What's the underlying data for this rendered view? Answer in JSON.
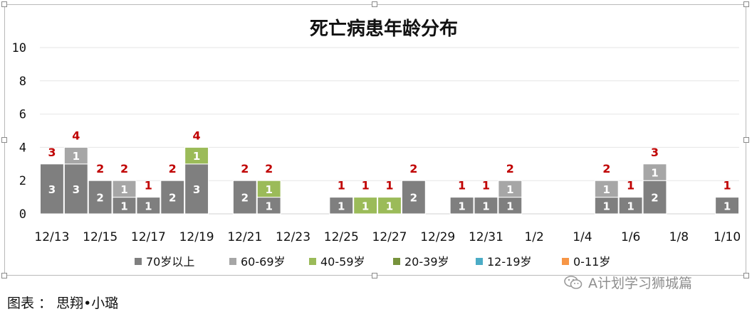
{
  "chart_data": {
    "type": "bar",
    "stacked": true,
    "title": "死亡病患年龄分布",
    "xlabel": "",
    "ylabel": "",
    "ylim": [
      0,
      10
    ],
    "yticks": [
      0,
      2,
      4,
      6,
      8,
      10
    ],
    "grid": true,
    "legend_position": "bottom",
    "categories": [
      "12/13",
      "12/14",
      "12/15",
      "12/16",
      "12/17",
      "12/18",
      "12/19",
      "12/20",
      "12/21",
      "12/22",
      "12/23",
      "12/24",
      "12/25",
      "12/26",
      "12/27",
      "12/28",
      "12/29",
      "12/30",
      "12/31",
      "1/1",
      "1/2",
      "1/3",
      "1/4",
      "1/5",
      "1/6",
      "1/7",
      "1/8",
      "1/9",
      "1/10"
    ],
    "xtick_labels": [
      "12/13",
      "12/15",
      "12/17",
      "12/19",
      "12/21",
      "12/23",
      "12/25",
      "12/27",
      "12/29",
      "12/31",
      "1/2",
      "1/4",
      "1/6",
      "1/8",
      "1/10"
    ],
    "series": [
      {
        "name": "70岁以上",
        "color": "#7f7f7f",
        "values": [
          3,
          3,
          2,
          1,
          1,
          2,
          3,
          0,
          2,
          1,
          0,
          0,
          1,
          0,
          0,
          2,
          0,
          1,
          1,
          1,
          0,
          0,
          0,
          1,
          1,
          2,
          0,
          0,
          1
        ]
      },
      {
        "name": "60-69岁",
        "color": "#a6a6a6",
        "values": [
          0,
          1,
          0,
          1,
          0,
          0,
          0,
          0,
          0,
          0,
          0,
          0,
          0,
          0,
          0,
          0,
          0,
          0,
          0,
          1,
          0,
          0,
          0,
          1,
          0,
          1,
          0,
          0,
          0
        ]
      },
      {
        "name": "40-59岁",
        "color": "#9bbb59",
        "values": [
          0,
          0,
          0,
          0,
          0,
          0,
          1,
          0,
          0,
          1,
          0,
          0,
          0,
          1,
          1,
          0,
          0,
          0,
          0,
          0,
          0,
          0,
          0,
          0,
          0,
          0,
          0,
          0,
          0
        ]
      },
      {
        "name": "20-39岁",
        "color": "#77933c",
        "values": [
          0,
          0,
          0,
          0,
          0,
          0,
          0,
          0,
          0,
          0,
          0,
          0,
          0,
          0,
          0,
          0,
          0,
          0,
          0,
          0,
          0,
          0,
          0,
          0,
          0,
          0,
          0,
          0,
          0
        ]
      },
      {
        "name": "12-19岁",
        "color": "#4bacc6",
        "values": [
          0,
          0,
          0,
          0,
          0,
          0,
          0,
          0,
          0,
          0,
          0,
          0,
          0,
          0,
          0,
          0,
          0,
          0,
          0,
          0,
          0,
          0,
          0,
          0,
          0,
          0,
          0,
          0,
          0
        ]
      },
      {
        "name": "0-11岁",
        "color": "#f79646",
        "values": [
          0,
          0,
          0,
          0,
          0,
          0,
          0,
          0,
          0,
          0,
          0,
          0,
          0,
          0,
          0,
          0,
          0,
          0,
          0,
          0,
          0,
          0,
          0,
          0,
          0,
          0,
          0,
          0,
          0
        ]
      }
    ],
    "total_label_color": "#c00000"
  },
  "footer": {
    "caption": "图表 ： 思翔•小璐"
  },
  "watermark": {
    "text": "A计划学习狮城篇"
  }
}
